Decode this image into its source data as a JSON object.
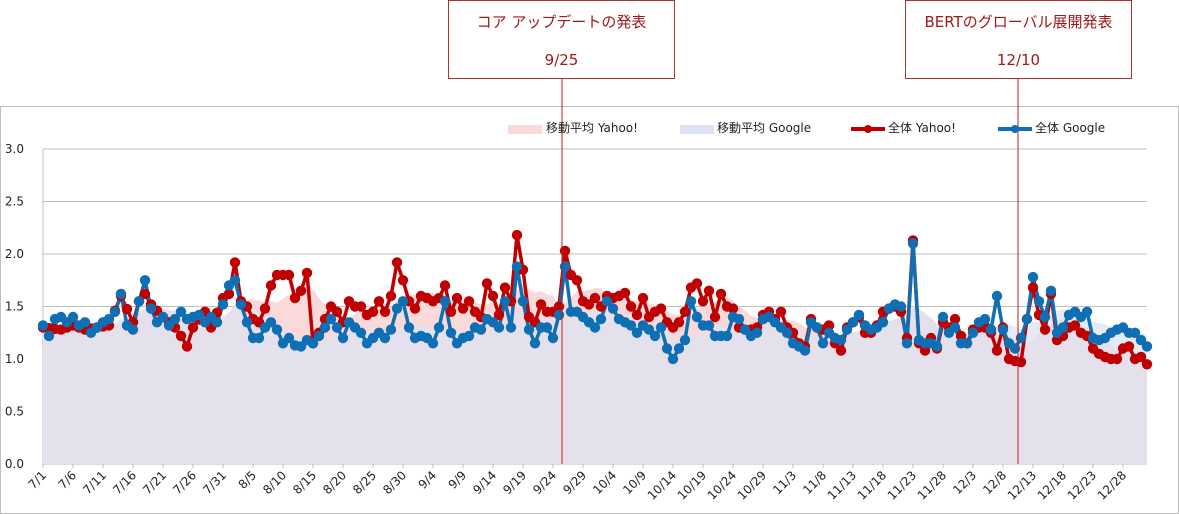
{
  "annotations": [
    {
      "title": "コア アップデートの発表",
      "date": "9/25"
    },
    {
      "title": "BERTのグローバル展開発表",
      "date": "12/10"
    }
  ],
  "legend": {
    "ma_yahoo": "移動平均 Yahoo!",
    "ma_google": "移動平均 Google",
    "all_yahoo": "全体 Yahoo!",
    "all_google": "全体 Google"
  },
  "colors": {
    "yahoo": "#c00000",
    "google": "#0f6fb5",
    "ma_yahoo_fill": "#f9d9da",
    "ma_google_fill": "#dde3f2",
    "overlap_fill": "#e2dae6",
    "annotation": "#b22222",
    "grid": "#bfbfbf"
  },
  "chart_data": {
    "type": "line",
    "title": "",
    "xlabel": "",
    "ylabel": "",
    "ylim": [
      0,
      3
    ],
    "yticks": [
      "0.0",
      "0.5",
      "1.0",
      "1.5",
      "2.0",
      "2.5",
      "3.0"
    ],
    "x_start": "7/1",
    "x_end": "12/31",
    "x_tick_labels": [
      "7/1",
      "7/6",
      "7/11",
      "7/16",
      "7/21",
      "7/26",
      "7/31",
      "8/5",
      "8/10",
      "8/15",
      "8/20",
      "8/25",
      "8/30",
      "9/4",
      "9/9",
      "9/14",
      "9/19",
      "9/24",
      "9/29",
      "10/4",
      "10/9",
      "10/14",
      "10/19",
      "10/24",
      "10/29",
      "11/3",
      "11/8",
      "11/13",
      "11/18",
      "11/23",
      "11/28",
      "12/3",
      "12/8",
      "12/13",
      "12/18",
      "12/23",
      "12/28"
    ],
    "legend_position": "top-right",
    "grid": true,
    "keyframes_yahoo": [
      [
        0,
        1.3
      ],
      [
        3,
        1.28
      ],
      [
        5,
        1.32
      ],
      [
        7,
        1.28
      ],
      [
        9,
        1.3
      ],
      [
        11,
        1.32
      ],
      [
        13,
        1.6
      ],
      [
        15,
        1.35
      ],
      [
        16,
        1.55
      ],
      [
        17,
        1.62
      ],
      [
        18,
        1.52
      ],
      [
        20,
        1.4
      ],
      [
        22,
        1.3
      ],
      [
        23,
        1.22
      ],
      [
        24,
        1.12
      ],
      [
        25,
        1.3
      ],
      [
        27,
        1.45
      ],
      [
        28,
        1.3
      ],
      [
        30,
        1.58
      ],
      [
        31,
        1.62
      ],
      [
        32,
        1.92
      ],
      [
        33,
        1.55
      ],
      [
        34,
        1.5
      ],
      [
        35,
        1.38
      ],
      [
        36,
        1.35
      ],
      [
        37,
        1.48
      ],
      [
        38,
        1.7
      ],
      [
        39,
        1.8
      ],
      [
        40,
        1.8
      ],
      [
        41,
        1.8
      ],
      [
        42,
        1.58
      ],
      [
        43,
        1.65
      ],
      [
        44,
        1.82
      ],
      [
        45,
        1.15
      ],
      [
        46,
        1.25
      ],
      [
        47,
        1.38
      ],
      [
        48,
        1.5
      ],
      [
        49,
        1.45
      ],
      [
        50,
        1.35
      ],
      [
        51,
        1.55
      ],
      [
        52,
        1.5
      ],
      [
        53,
        1.5
      ],
      [
        54,
        1.42
      ],
      [
        55,
        1.45
      ],
      [
        56,
        1.55
      ],
      [
        57,
        1.45
      ],
      [
        58,
        1.6
      ],
      [
        59,
        1.92
      ],
      [
        60,
        1.75
      ],
      [
        61,
        1.55
      ],
      [
        62,
        1.48
      ],
      [
        63,
        1.6
      ],
      [
        64,
        1.58
      ],
      [
        65,
        1.55
      ],
      [
        66,
        1.58
      ],
      [
        67,
        1.7
      ],
      [
        68,
        1.45
      ],
      [
        69,
        1.58
      ],
      [
        70,
        1.48
      ],
      [
        71,
        1.55
      ],
      [
        72,
        1.45
      ],
      [
        73,
        1.4
      ],
      [
        74,
        1.72
      ],
      [
        75,
        1.6
      ],
      [
        76,
        1.42
      ],
      [
        77,
        1.68
      ],
      [
        78,
        1.55
      ],
      [
        79,
        2.18
      ],
      [
        80,
        1.85
      ],
      [
        81,
        1.4
      ],
      [
        82,
        1.35
      ],
      [
        83,
        1.52
      ],
      [
        84,
        1.45
      ],
      [
        85,
        1.45
      ],
      [
        86,
        1.5
      ],
      [
        87,
        2.03
      ],
      [
        88,
        1.8
      ],
      [
        89,
        1.75
      ],
      [
        90,
        1.55
      ],
      [
        91,
        1.52
      ],
      [
        92,
        1.58
      ],
      [
        93,
        1.5
      ],
      [
        94,
        1.6
      ],
      [
        95,
        1.58
      ],
      [
        96,
        1.6
      ],
      [
        97,
        1.63
      ],
      [
        98,
        1.5
      ],
      [
        99,
        1.42
      ],
      [
        100,
        1.58
      ],
      [
        101,
        1.4
      ],
      [
        102,
        1.45
      ],
      [
        103,
        1.48
      ],
      [
        104,
        1.35
      ],
      [
        105,
        1.3
      ],
      [
        106,
        1.35
      ],
      [
        107,
        1.45
      ],
      [
        108,
        1.68
      ],
      [
        109,
        1.72
      ],
      [
        110,
        1.55
      ],
      [
        111,
        1.65
      ],
      [
        112,
        1.4
      ],
      [
        113,
        1.62
      ],
      [
        114,
        1.5
      ],
      [
        115,
        1.48
      ],
      [
        116,
        1.3
      ],
      [
        117,
        1.28
      ],
      [
        118,
        1.28
      ],
      [
        119,
        1.3
      ],
      [
        120,
        1.42
      ],
      [
        121,
        1.45
      ],
      [
        122,
        1.38
      ],
      [
        123,
        1.45
      ],
      [
        124,
        1.3
      ],
      [
        125,
        1.25
      ],
      [
        126,
        1.15
      ],
      [
        127,
        1.12
      ],
      [
        128,
        1.38
      ],
      [
        129,
        1.3
      ],
      [
        130,
        1.28
      ],
      [
        131,
        1.32
      ],
      [
        132,
        1.15
      ],
      [
        133,
        1.08
      ],
      [
        134,
        1.3
      ],
      [
        135,
        1.35
      ],
      [
        136,
        1.4
      ],
      [
        137,
        1.25
      ],
      [
        138,
        1.25
      ],
      [
        139,
        1.32
      ],
      [
        140,
        1.45
      ],
      [
        141,
        1.48
      ],
      [
        142,
        1.5
      ],
      [
        143,
        1.45
      ],
      [
        144,
        1.2
      ],
      [
        145,
        2.13
      ],
      [
        146,
        1.15
      ],
      [
        147,
        1.08
      ],
      [
        148,
        1.2
      ],
      [
        149,
        1.1
      ],
      [
        150,
        1.35
      ],
      [
        151,
        1.3
      ],
      [
        152,
        1.38
      ],
      [
        153,
        1.22
      ],
      [
        154,
        1.15
      ],
      [
        155,
        1.28
      ],
      [
        156,
        1.3
      ],
      [
        157,
        1.3
      ],
      [
        158,
        1.25
      ],
      [
        159,
        1.08
      ],
      [
        160,
        1.3
      ],
      [
        161,
        1.0
      ],
      [
        162,
        0.98
      ],
      [
        163,
        0.97
      ],
      [
        164,
        1.38
      ],
      [
        165,
        1.68
      ],
      [
        166,
        1.42
      ],
      [
        167,
        1.28
      ],
      [
        168,
        1.62
      ],
      [
        169,
        1.18
      ],
      [
        170,
        1.22
      ],
      [
        171,
        1.3
      ],
      [
        172,
        1.32
      ],
      [
        173,
        1.25
      ],
      [
        174,
        1.22
      ],
      [
        175,
        1.1
      ],
      [
        176,
        1.05
      ],
      [
        177,
        1.02
      ],
      [
        178,
        1.0
      ],
      [
        179,
        1.0
      ],
      [
        180,
        1.1
      ],
      [
        181,
        1.12
      ],
      [
        182,
        1.0
      ],
      [
        183,
        1.02
      ],
      [
        184,
        0.95
      ]
    ],
    "keyframes_google": [
      [
        0,
        1.32
      ],
      [
        1,
        1.22
      ],
      [
        2,
        1.38
      ],
      [
        3,
        1.4
      ],
      [
        4,
        1.35
      ],
      [
        5,
        1.4
      ],
      [
        6,
        1.32
      ],
      [
        7,
        1.35
      ],
      [
        8,
        1.25
      ],
      [
        9,
        1.3
      ],
      [
        10,
        1.35
      ],
      [
        11,
        1.38
      ],
      [
        12,
        1.45
      ],
      [
        13,
        1.62
      ],
      [
        14,
        1.32
      ],
      [
        15,
        1.28
      ],
      [
        16,
        1.55
      ],
      [
        17,
        1.75
      ],
      [
        18,
        1.48
      ],
      [
        19,
        1.35
      ],
      [
        20,
        1.4
      ],
      [
        21,
        1.32
      ],
      [
        22,
        1.38
      ],
      [
        23,
        1.45
      ],
      [
        24,
        1.38
      ],
      [
        25,
        1.4
      ],
      [
        26,
        1.42
      ],
      [
        27,
        1.35
      ],
      [
        28,
        1.4
      ],
      [
        29,
        1.35
      ],
      [
        30,
        1.52
      ],
      [
        31,
        1.7
      ],
      [
        32,
        1.75
      ],
      [
        33,
        1.52
      ],
      [
        34,
        1.35
      ],
      [
        35,
        1.2
      ],
      [
        36,
        1.2
      ],
      [
        37,
        1.3
      ],
      [
        38,
        1.35
      ],
      [
        39,
        1.28
      ],
      [
        40,
        1.15
      ],
      [
        41,
        1.2
      ],
      [
        42,
        1.13
      ],
      [
        43,
        1.12
      ],
      [
        44,
        1.18
      ],
      [
        45,
        1.15
      ],
      [
        46,
        1.22
      ],
      [
        47,
        1.3
      ],
      [
        48,
        1.38
      ],
      [
        49,
        1.3
      ],
      [
        50,
        1.2
      ],
      [
        51,
        1.35
      ],
      [
        52,
        1.3
      ],
      [
        53,
        1.25
      ],
      [
        54,
        1.15
      ],
      [
        55,
        1.2
      ],
      [
        56,
        1.25
      ],
      [
        57,
        1.2
      ],
      [
        58,
        1.28
      ],
      [
        59,
        1.48
      ],
      [
        60,
        1.55
      ],
      [
        61,
        1.3
      ],
      [
        62,
        1.2
      ],
      [
        63,
        1.22
      ],
      [
        64,
        1.2
      ],
      [
        65,
        1.15
      ],
      [
        66,
        1.3
      ],
      [
        67,
        1.55
      ],
      [
        68,
        1.25
      ],
      [
        69,
        1.15
      ],
      [
        70,
        1.2
      ],
      [
        71,
        1.22
      ],
      [
        72,
        1.3
      ],
      [
        73,
        1.28
      ],
      [
        74,
        1.38
      ],
      [
        75,
        1.35
      ],
      [
        76,
        1.3
      ],
      [
        77,
        1.55
      ],
      [
        78,
        1.3
      ],
      [
        79,
        1.88
      ],
      [
        80,
        1.55
      ],
      [
        81,
        1.28
      ],
      [
        82,
        1.15
      ],
      [
        83,
        1.3
      ],
      [
        84,
        1.3
      ],
      [
        85,
        1.2
      ],
      [
        86,
        1.42
      ],
      [
        87,
        1.88
      ],
      [
        88,
        1.45
      ],
      [
        89,
        1.45
      ],
      [
        90,
        1.4
      ],
      [
        91,
        1.35
      ],
      [
        92,
        1.3
      ],
      [
        93,
        1.38
      ],
      [
        94,
        1.55
      ],
      [
        95,
        1.48
      ],
      [
        96,
        1.38
      ],
      [
        97,
        1.35
      ],
      [
        98,
        1.32
      ],
      [
        99,
        1.25
      ],
      [
        100,
        1.32
      ],
      [
        101,
        1.28
      ],
      [
        102,
        1.22
      ],
      [
        103,
        1.3
      ],
      [
        104,
        1.1
      ],
      [
        105,
        1.0
      ],
      [
        106,
        1.1
      ],
      [
        107,
        1.18
      ],
      [
        108,
        1.55
      ],
      [
        109,
        1.4
      ],
      [
        110,
        1.32
      ],
      [
        111,
        1.32
      ],
      [
        112,
        1.22
      ],
      [
        113,
        1.22
      ],
      [
        114,
        1.22
      ],
      [
        115,
        1.4
      ],
      [
        116,
        1.38
      ],
      [
        117,
        1.28
      ],
      [
        118,
        1.22
      ],
      [
        119,
        1.25
      ],
      [
        120,
        1.38
      ],
      [
        121,
        1.4
      ],
      [
        122,
        1.35
      ],
      [
        123,
        1.3
      ],
      [
        124,
        1.25
      ],
      [
        125,
        1.15
      ],
      [
        126,
        1.12
      ],
      [
        127,
        1.08
      ],
      [
        128,
        1.35
      ],
      [
        129,
        1.3
      ],
      [
        130,
        1.15
      ],
      [
        131,
        1.25
      ],
      [
        132,
        1.2
      ],
      [
        133,
        1.18
      ],
      [
        134,
        1.28
      ],
      [
        135,
        1.35
      ],
      [
        136,
        1.42
      ],
      [
        137,
        1.32
      ],
      [
        138,
        1.28
      ],
      [
        139,
        1.3
      ],
      [
        140,
        1.35
      ],
      [
        141,
        1.48
      ],
      [
        142,
        1.52
      ],
      [
        143,
        1.5
      ],
      [
        144,
        1.15
      ],
      [
        145,
        2.1
      ],
      [
        146,
        1.18
      ],
      [
        147,
        1.15
      ],
      [
        148,
        1.15
      ],
      [
        149,
        1.12
      ],
      [
        150,
        1.4
      ],
      [
        151,
        1.25
      ],
      [
        152,
        1.3
      ],
      [
        153,
        1.15
      ],
      [
        154,
        1.15
      ],
      [
        155,
        1.25
      ],
      [
        156,
        1.35
      ],
      [
        157,
        1.38
      ],
      [
        158,
        1.28
      ],
      [
        159,
        1.6
      ],
      [
        160,
        1.28
      ],
      [
        161,
        1.15
      ],
      [
        162,
        1.1
      ],
      [
        163,
        1.2
      ],
      [
        164,
        1.38
      ],
      [
        165,
        1.78
      ],
      [
        166,
        1.55
      ],
      [
        167,
        1.4
      ],
      [
        168,
        1.65
      ],
      [
        169,
        1.25
      ],
      [
        170,
        1.3
      ],
      [
        171,
        1.42
      ],
      [
        172,
        1.45
      ],
      [
        173,
        1.4
      ],
      [
        174,
        1.45
      ],
      [
        175,
        1.2
      ],
      [
        176,
        1.18
      ],
      [
        177,
        1.2
      ],
      [
        178,
        1.25
      ],
      [
        179,
        1.28
      ],
      [
        180,
        1.3
      ],
      [
        181,
        1.25
      ],
      [
        182,
        1.25
      ],
      [
        183,
        1.18
      ],
      [
        184,
        1.12
      ]
    ]
  }
}
